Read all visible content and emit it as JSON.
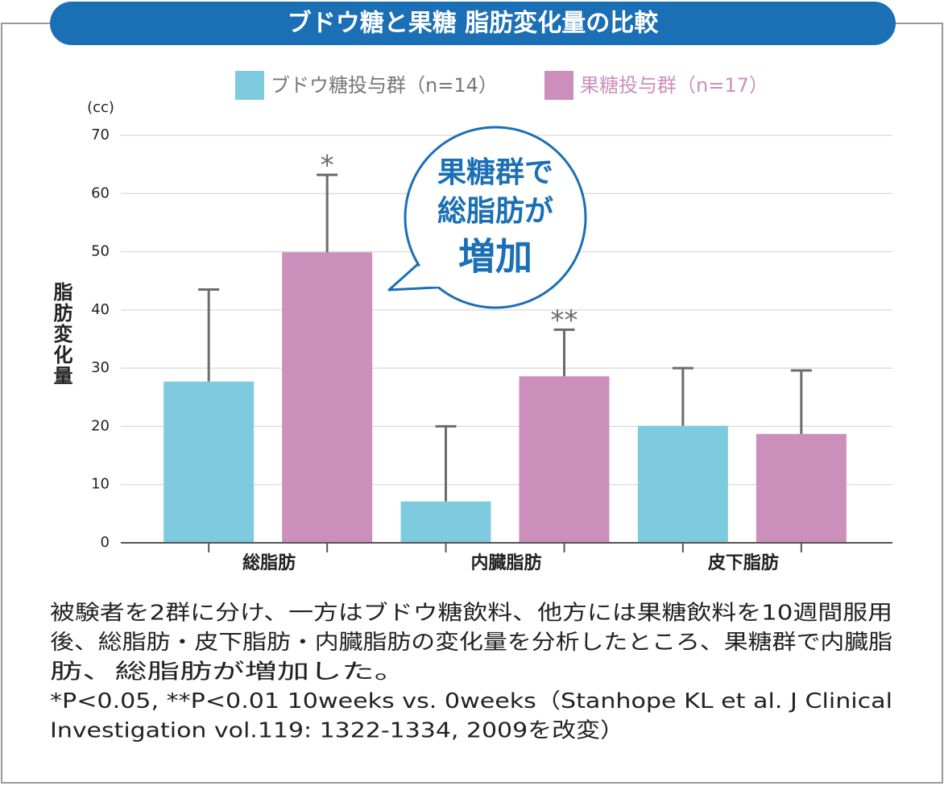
{
  "chart_data": {
    "type": "bar",
    "title": "ブドウ糖と果糖 脂肪変化量の比較",
    "y_unit": "(cc)",
    "y_label": "脂肪変化量",
    "categories": [
      "総脂肪",
      "内臓脂肪",
      "皮下脂肪"
    ],
    "series": [
      {
        "name": "ブドウ糖投与群（n=14）",
        "color": "#7ecbdf",
        "values": [
          27.7,
          7.1,
          20.1
        ],
        "errors": [
          15.8,
          12.9,
          9.9
        ]
      },
      {
        "name": "果糖投与群（n=17）",
        "color": "#cc8fbc",
        "values": [
          49.9,
          28.6,
          18.7
        ],
        "errors": [
          13.3,
          8.0,
          10.9
        ],
        "sig_labels": [
          "*",
          "**",
          null
        ]
      }
    ],
    "ylim": [
      0,
      70
    ],
    "yticks": [
      0,
      10,
      20,
      30,
      40,
      50,
      60,
      70
    ],
    "grid": true,
    "callout": [
      "果糖群で",
      "総脂肪が",
      "増加"
    ],
    "footnote": [
      "被験者を2群に分け、一方はブドウ糖飲料、他方には果糖飲料を10週間服用",
      "後、総脂肪・皮下脂肪・内臓脂肪の変化量を分析したところ、果糖群で内臓脂",
      "肪、総脂肪が増加した。",
      "*P<0.05, **P<0.01 10weeks vs. 0weeks（Stanhope KL et al. J Clinical",
      "Investigation vol.119: 1322-1334, 2009を改変）"
    ]
  }
}
